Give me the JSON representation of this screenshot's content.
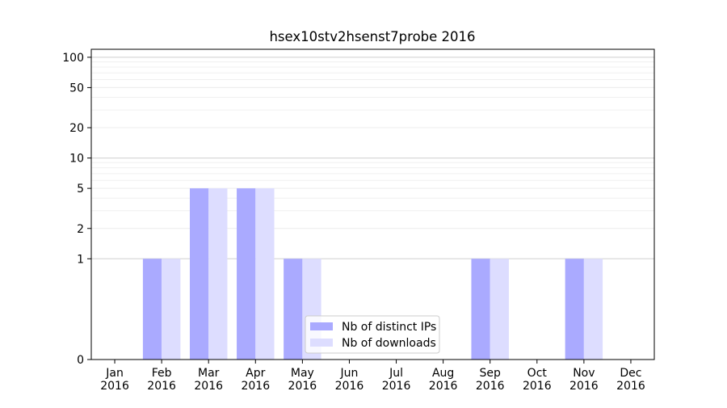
{
  "chart_data": {
    "type": "bar",
    "title": "hsex10stv2hsenst7probe 2016",
    "xlabel": "",
    "ylabel": "",
    "categories": [
      "Jan\n2016",
      "Feb\n2016",
      "Mar\n2016",
      "Apr\n2016",
      "May\n2016",
      "Jun\n2016",
      "Jul\n2016",
      "Aug\n2016",
      "Sep\n2016",
      "Oct\n2016",
      "Nov\n2016",
      "Dec\n2016"
    ],
    "series": [
      {
        "name": "Nb of distinct IPs",
        "color": "#aaaaff",
        "values": [
          0,
          1,
          5,
          5,
          1,
          0,
          0,
          0,
          1,
          0,
          1,
          0
        ]
      },
      {
        "name": "Nb of downloads",
        "color": "#ddddff",
        "values": [
          0,
          1,
          5,
          5,
          1,
          0,
          0,
          0,
          1,
          0,
          1,
          0
        ]
      }
    ],
    "y_scale": "symlog",
    "ylim": [
      0,
      120
    ],
    "yticks": [
      0,
      1,
      2,
      5,
      10,
      20,
      50,
      100
    ],
    "grid": true,
    "legend_position": "lower-center"
  }
}
